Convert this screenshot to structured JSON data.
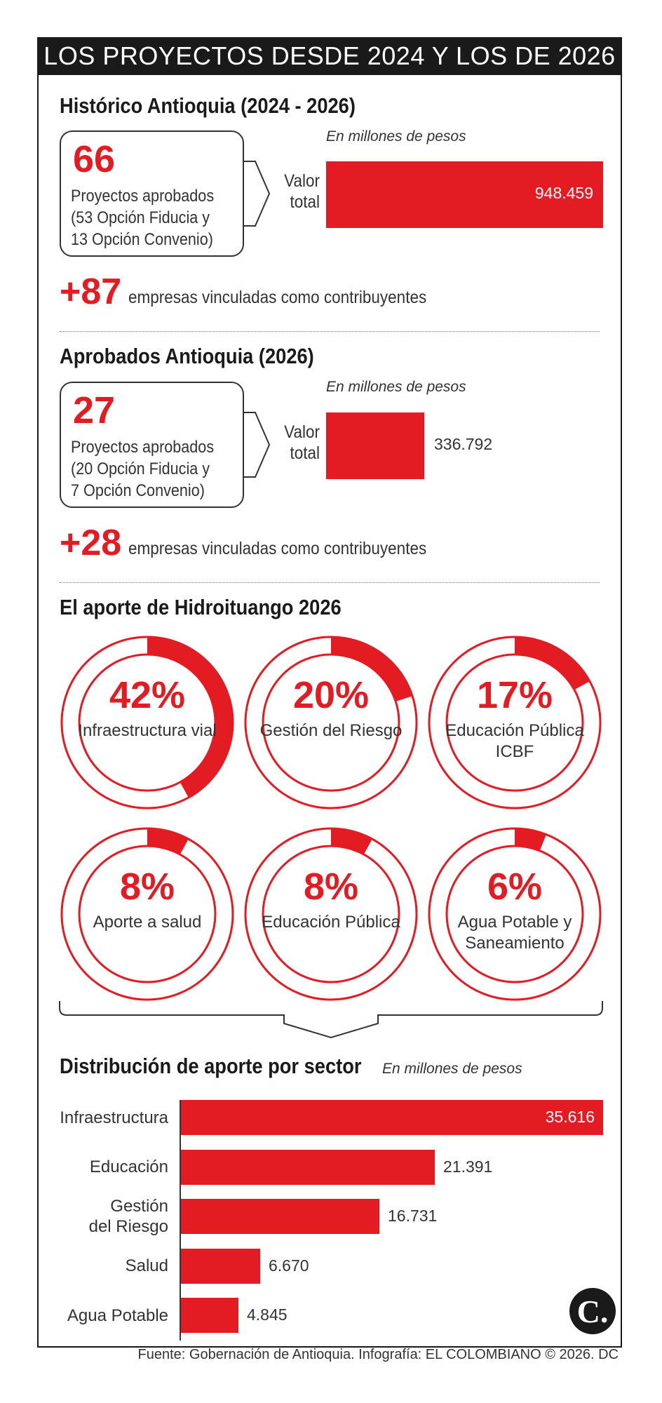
{
  "header": {
    "title": "LOS PROYECTOS DESDE 2024 Y LOS DE 2026"
  },
  "historico": {
    "heading": "Histórico Antioquia (2024 - 2026)",
    "units": "En millones de pesos",
    "count": "66",
    "description": "Proyectos aprobados (53 Opción Fiducia y 13 Opción Convenio)",
    "valor_label": "Valor total",
    "value": 948459,
    "value_text": "948.459",
    "companies": "+87",
    "companies_text": "empresas vinculadas como contribuyentes"
  },
  "aprobados": {
    "heading": "Aprobados Antioquia (2026)",
    "units": "En millones de pesos",
    "count": "27",
    "description": "Proyectos aprobados (20 Opción Fiducia y 7 Opción Convenio)",
    "valor_label": "Valor total",
    "value": 336792,
    "value_text": "336.792",
    "companies": "+28",
    "companies_text": "empresas vinculadas como contribuyentes"
  },
  "hidroituango": {
    "heading": "El aporte de Hidroituango 2026",
    "items": [
      {
        "pct": 42,
        "pct_text": "42%",
        "label": "Infraestructura vial"
      },
      {
        "pct": 20,
        "pct_text": "20%",
        "label": "Gestión del Riesgo"
      },
      {
        "pct": 17,
        "pct_text": "17%",
        "label": "Educación Pública ICBF"
      },
      {
        "pct": 8,
        "pct_text": "8%",
        "label": "Aporte a salud"
      },
      {
        "pct": 8,
        "pct_text": "8%",
        "label": "Educación Pública"
      },
      {
        "pct": 6,
        "pct_text": "6%",
        "label": "Agua Potable y Saneamiento"
      }
    ]
  },
  "chart_data": {
    "type": "bar",
    "title": "Distribución de aporte por sector",
    "subtitle": "En millones de pesos",
    "categories": [
      "Infraestructura",
      "Educación",
      "Gestión del Riesgo",
      "Salud",
      "Agua Potable"
    ],
    "values": [
      35616,
      21391,
      16731,
      6670,
      4845
    ],
    "value_labels": [
      "35.616",
      "21.391",
      "16.731",
      "6.670",
      "4.845"
    ],
    "xlim": [
      0,
      35616
    ]
  },
  "footer": {
    "source": "Fuente: Gobernación de Antioquia. Infografía: EL COLOMBIANO © 2026. DC",
    "logo": "C."
  },
  "colors": {
    "accent": "#e31b23",
    "dark": "#1a1a1a"
  }
}
